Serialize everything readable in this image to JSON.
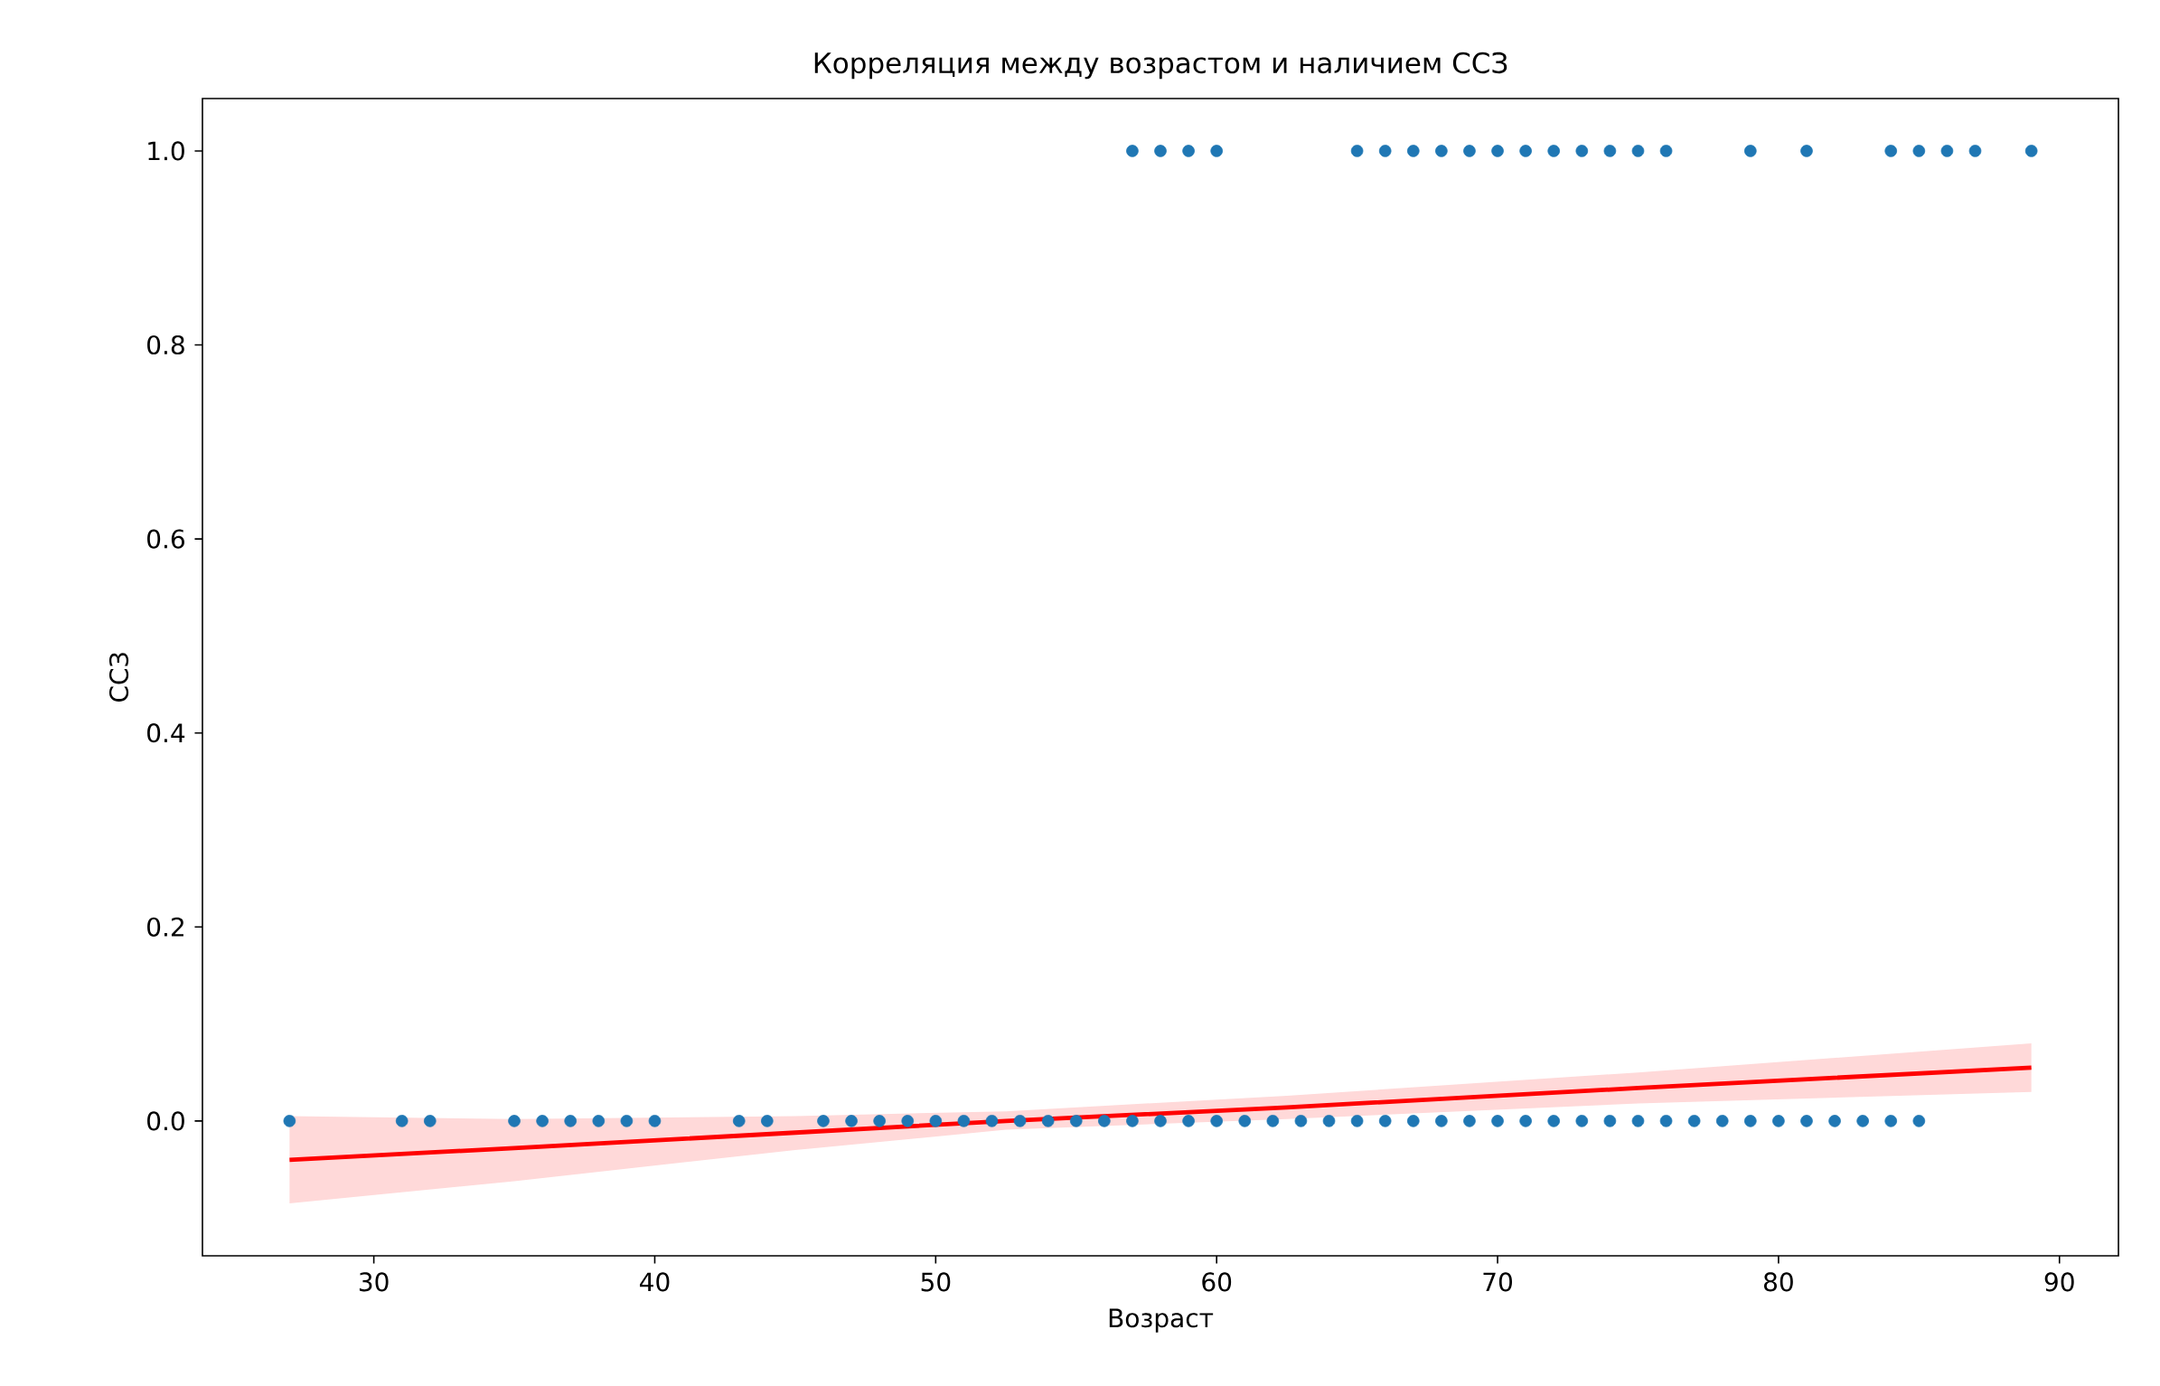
{
  "chart_data": {
    "type": "scatter",
    "title": "Корреляция между возрастом и наличием ССЗ",
    "xlabel": "Возраст",
    "ylabel": "ССЗ",
    "xlim": [
      23.9,
      92.1
    ],
    "ylim": [
      -0.139,
      1.054
    ],
    "xticks": [
      30,
      40,
      50,
      60,
      70,
      80,
      90
    ],
    "yticks": [
      {
        "value": 0,
        "label": "0.0"
      },
      {
        "value": 0.2,
        "label": "0.2"
      },
      {
        "value": 0.4,
        "label": "0.4"
      },
      {
        "value": 0.6,
        "label": "0.6"
      },
      {
        "value": 0.8,
        "label": "0.8"
      },
      {
        "value": 1,
        "label": "1.0"
      }
    ],
    "grid": false,
    "series": [
      {
        "type": "scatter",
        "marker": "circle",
        "color": "#1f77b4",
        "x": [
          57,
          58,
          59,
          60,
          65,
          66,
          67,
          68,
          69,
          70,
          71,
          72,
          73,
          74,
          75,
          76,
          79,
          81,
          84,
          85,
          86,
          87,
          89,
          27,
          31,
          32,
          35,
          36,
          37,
          38,
          39,
          40,
          43,
          44,
          46,
          47,
          48,
          49,
          50,
          51,
          52,
          53,
          54,
          55,
          56,
          57,
          58,
          59,
          60,
          61,
          62,
          63,
          64,
          65,
          66,
          67,
          68,
          69,
          70,
          71,
          72,
          73,
          74,
          75,
          76,
          77,
          78,
          79,
          80,
          81,
          82,
          83,
          84,
          85
        ],
        "values": [
          1,
          1,
          1,
          1,
          1,
          1,
          1,
          1,
          1,
          1,
          1,
          1,
          1,
          1,
          1,
          1,
          1,
          1,
          1,
          1,
          1,
          1,
          1,
          0,
          0,
          0,
          0,
          0,
          0,
          0,
          0,
          0,
          0,
          0,
          0,
          0,
          0,
          0,
          0,
          0,
          0,
          0,
          0,
          0,
          0,
          0,
          0,
          0,
          0,
          0,
          0,
          0,
          0,
          0,
          0,
          0,
          0,
          0,
          0,
          0,
          0,
          0,
          0,
          0,
          0,
          0,
          0,
          0,
          0,
          0,
          0,
          0,
          0,
          0
        ]
      },
      {
        "type": "line",
        "marker": "none",
        "color": "#ff0000",
        "x": [
          27,
          35,
          45,
          52.5,
          62.5,
          75,
          89
        ],
        "values": [
          -0.04,
          -0.028,
          -0.012,
          0.0,
          0.014,
          0.034,
          0.055
        ],
        "lower": [
          -0.085,
          -0.062,
          -0.03,
          -0.009,
          0.002,
          0.018,
          0.03
        ],
        "upper": [
          0.005,
          0.002,
          0.005,
          0.01,
          0.026,
          0.05,
          0.08
        ]
      }
    ]
  }
}
